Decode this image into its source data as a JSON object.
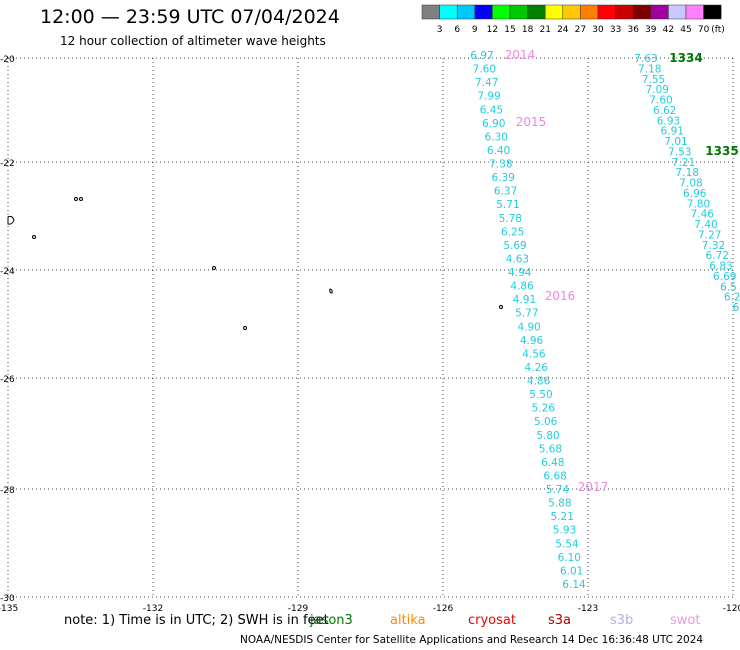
{
  "header": {
    "title": "12:00 — 23:59 UTC 07/04/2024",
    "subtitle": "12 hour collection of altimeter wave heights"
  },
  "colorbar": {
    "unit": "(ft)",
    "ticks": [
      "3",
      "6",
      "9",
      "12",
      "15",
      "18",
      "21",
      "24",
      "27",
      "30",
      "33",
      "36",
      "39",
      "42",
      "45",
      "70"
    ],
    "colors": [
      "#808080",
      "#00ffff",
      "#00c8ff",
      "#0000ff",
      "#00ff00",
      "#00c800",
      "#008000",
      "#ffff00",
      "#ffc800",
      "#ff8000",
      "#ff0000",
      "#c80000",
      "#800000",
      "#a000a0",
      "#c8c8ff",
      "#ff80ff",
      "#000000"
    ]
  },
  "axes": {
    "lat_labels": [
      "-20",
      "-22",
      "-24",
      "-26",
      "-28",
      "-30"
    ],
    "lon_labels": [
      "-135",
      "-132",
      "-129",
      "-126",
      "-123",
      "-120"
    ]
  },
  "tracks": [
    {
      "color": "#22ccdd",
      "values": [
        "6.97",
        "7.60",
        "7.47",
        "7.99",
        "6.45",
        "6.90",
        "6.30",
        "6.40",
        "7.38",
        "6.39",
        "6.37",
        "5.71",
        "5.78",
        "6.25",
        "5.69",
        "4.63",
        "4.94",
        "4.86",
        "4.91",
        "5.77",
        "4.90",
        "4.96",
        "4.56",
        "4.26",
        "4.86",
        "5.50",
        "5.26",
        "5.06",
        "5.80",
        "5.68",
        "6.48",
        "6.68",
        "5.74",
        "5.88",
        "5.21",
        "5.93",
        "5.54",
        "6.10",
        "6.01",
        "6.14"
      ],
      "labels": [
        {
          "text": "2014",
          "color": "#ee88dd"
        },
        {
          "text": "2015",
          "color": "#ee88dd"
        },
        {
          "text": "2016",
          "color": "#ee88dd"
        },
        {
          "text": "2017",
          "color": "#ee88dd"
        }
      ]
    },
    {
      "color": "#22ccdd",
      "values": [
        "7.63",
        "7.18",
        "7.55",
        "7.09",
        "7.60",
        "6.62",
        "6.93",
        "6.91",
        "7.01",
        "7.53",
        "7.21",
        "7.18",
        "7.08",
        "6.96",
        "7.80",
        "7.46",
        "7.40",
        "7.27",
        "7.32",
        "6.72",
        "6.83",
        "6.69",
        "6.5",
        "6.2",
        "6"
      ],
      "labels": [
        {
          "text": "1334",
          "color": "#007700"
        },
        {
          "text": "1335",
          "color": "#007700"
        }
      ]
    }
  ],
  "footer": {
    "note": "note: 1) Time is in UTC; 2) SWH is in feet",
    "missions": [
      {
        "name": "jason3",
        "color": "#007700"
      },
      {
        "name": "altika",
        "color": "#ff8800"
      },
      {
        "name": "cryosat",
        "color": "#ee0000"
      },
      {
        "name": "s3a",
        "color": "#aa0000"
      },
      {
        "name": "s3b",
        "color": "#bbaaee"
      },
      {
        "name": "swot",
        "color": "#ee99dd"
      }
    ],
    "credit": "NOAA/NESDIS Center for Satellite Applications and Research    14 Dec 16:36:48 UTC 2024"
  }
}
